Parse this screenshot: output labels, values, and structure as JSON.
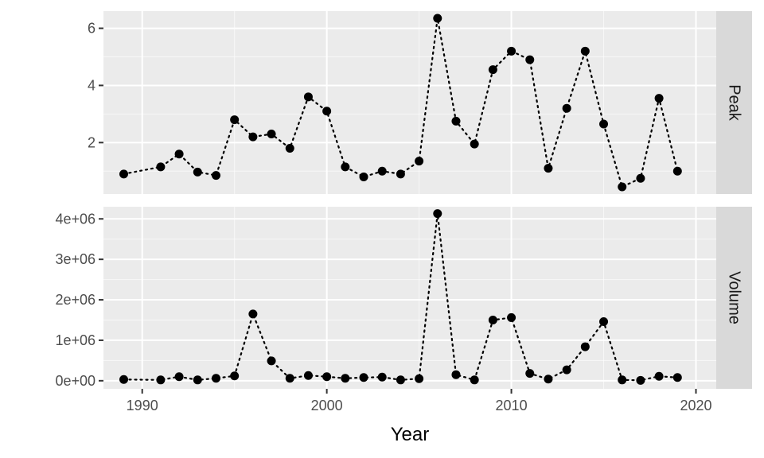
{
  "chart_data": {
    "type": "line",
    "xlabel": "Year",
    "x_ticks": [
      1990,
      2000,
      2010,
      2020
    ],
    "xlim": [
      1987.9,
      2021.1
    ],
    "x": [
      1989,
      1991,
      1992,
      1993,
      1994,
      1995,
      1996,
      1997,
      1998,
      1999,
      2000,
      2001,
      2002,
      2003,
      2004,
      2005,
      2006,
      2007,
      2008,
      2009,
      2010,
      2011,
      2012,
      2013,
      2014,
      2015,
      2016,
      2017,
      2018,
      2019
    ],
    "line_style": "dotted",
    "marker": "filled-circle",
    "grid": true,
    "panels": [
      {
        "strip_label": "Peak",
        "ylim": [
          0.2,
          6.6
        ],
        "y_ticks": [
          2,
          4,
          6
        ],
        "y_tick_labels": [
          "2",
          "4",
          "6"
        ],
        "values": [
          0.9,
          1.15,
          1.6,
          0.97,
          0.85,
          2.8,
          2.2,
          2.3,
          1.8,
          3.6,
          3.1,
          1.15,
          0.8,
          1.0,
          0.9,
          1.35,
          6.35,
          2.75,
          1.95,
          4.55,
          5.2,
          4.9,
          1.1,
          3.2,
          5.2,
          2.65,
          0.45,
          0.75,
          3.55,
          1.0
        ]
      },
      {
        "strip_label": "Volume",
        "ylim": [
          -200000,
          4300000
        ],
        "y_ticks": [
          0,
          1000000,
          2000000,
          3000000,
          4000000
        ],
        "y_tick_labels": [
          "0e+00",
          "1e+06",
          "2e+06",
          "3e+06",
          "4e+06"
        ],
        "values": [
          30000,
          20000,
          100000,
          20000,
          60000,
          120000,
          1650000,
          490000,
          60000,
          130000,
          100000,
          60000,
          80000,
          90000,
          20000,
          50000,
          4130000,
          150000,
          20000,
          1500000,
          1560000,
          180000,
          40000,
          270000,
          840000,
          1460000,
          20000,
          10000,
          110000,
          80000
        ]
      }
    ]
  }
}
